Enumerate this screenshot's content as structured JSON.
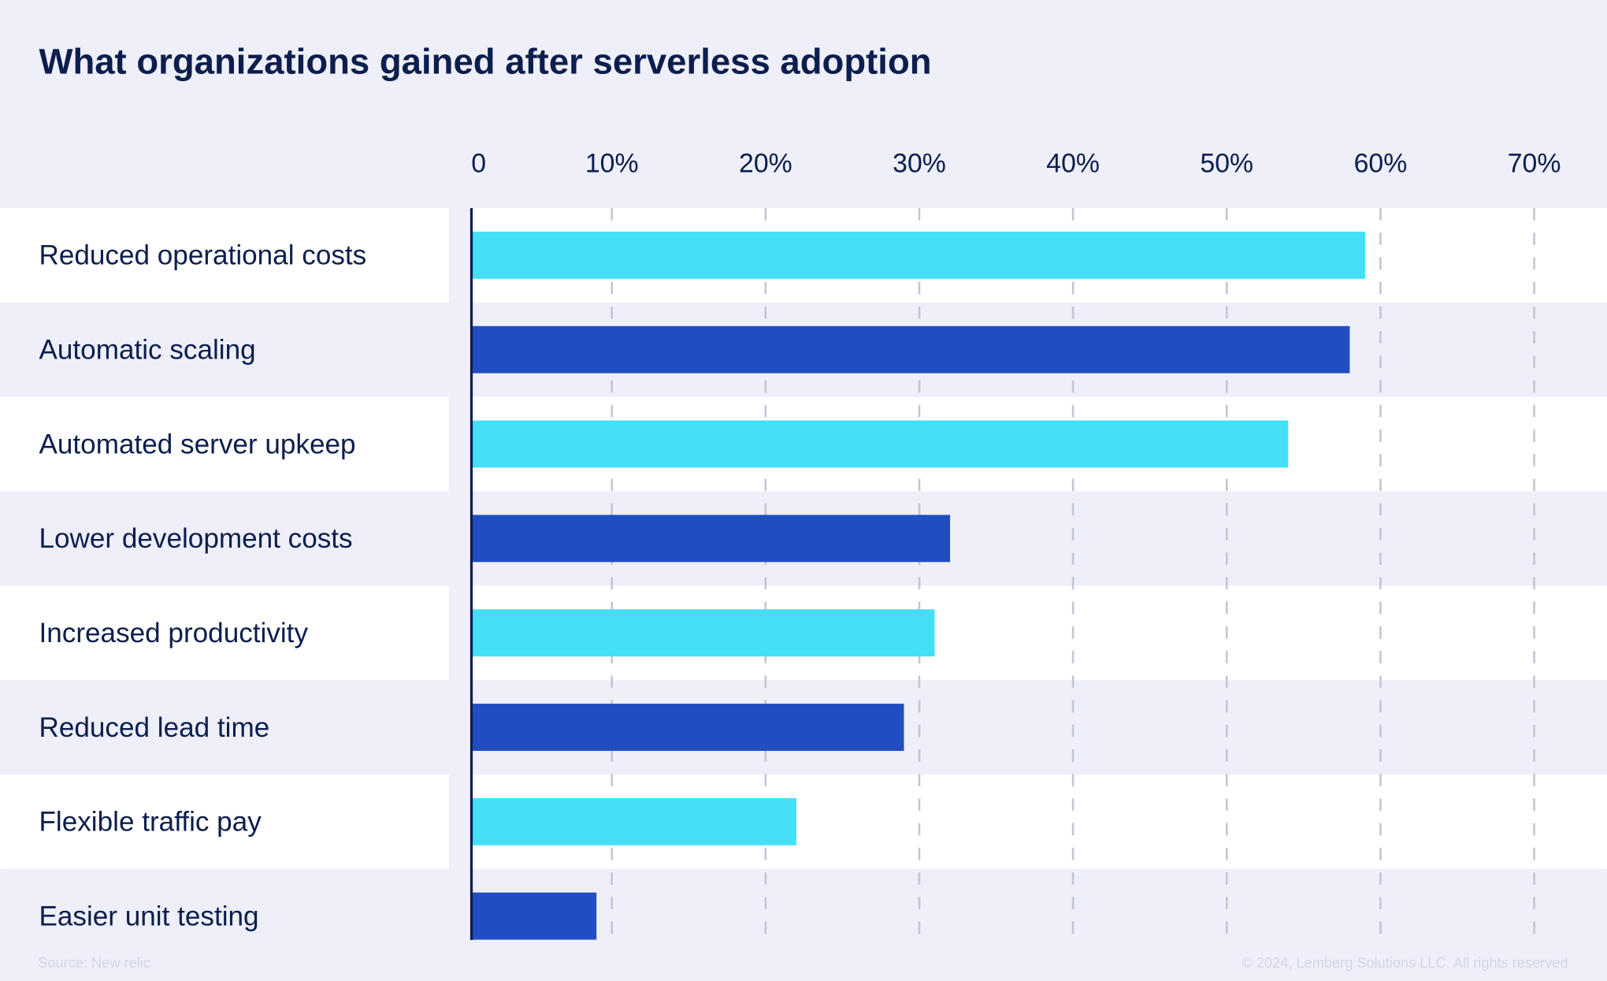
{
  "chart_data": {
    "type": "bar",
    "orientation": "horizontal",
    "title": "What organizations gained after serverless adoption",
    "categories": [
      "Reduced operational costs",
      "Automatic scaling",
      "Automated server upkeep",
      "Lower development costs",
      "Increased productivity",
      "Reduced lead time",
      "Flexible traffic pay",
      "Easier unit testing"
    ],
    "values": [
      59,
      58,
      54,
      32,
      31,
      29,
      22,
      9
    ],
    "unit": "%",
    "xlim": [
      0,
      70
    ],
    "x_ticks": [
      0,
      10,
      20,
      30,
      40,
      50,
      60,
      70
    ],
    "x_tick_labels": [
      "0",
      "10%",
      "20%",
      "30%",
      "40%",
      "50%",
      "60%",
      "70%"
    ],
    "axis_position": "top",
    "grid": "vertical dashed",
    "legend": "none",
    "colors": {
      "odd_bars": "#44dff7",
      "even_bars": "#224dc1",
      "background": "#eeeff8",
      "row_highlight": "#ffffff",
      "text": "#0c1e4e",
      "grid": "#c3c6d4"
    }
  },
  "footer": {
    "source": "Source: New relic",
    "copyright": "© 2024, Lemberg Solutions LLC. All rights reserved"
  }
}
